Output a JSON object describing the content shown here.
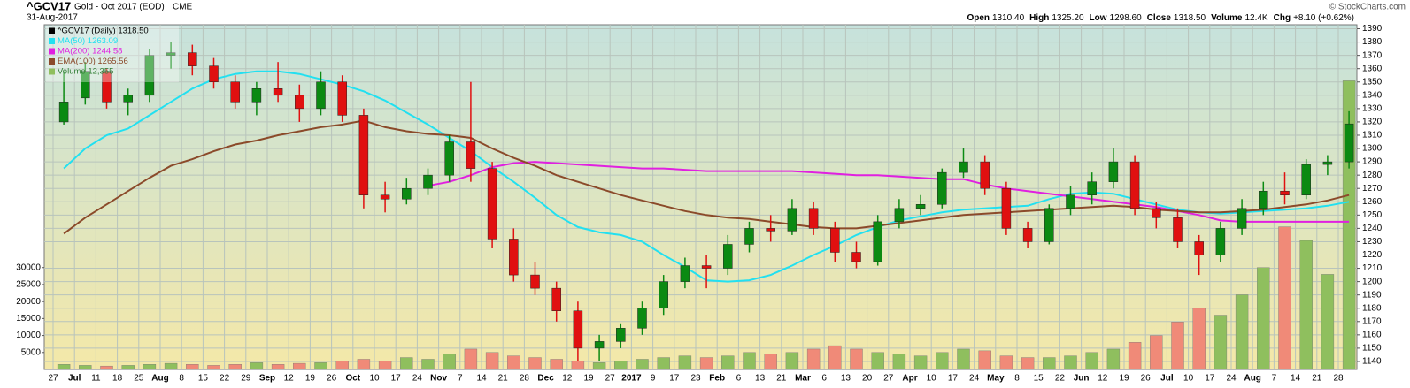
{
  "header": {
    "symbol": "^GCV17",
    "name": "Gold - Oct 2017 (EOD)",
    "exchange": "CME",
    "date": "31-Aug-2017",
    "copyright": "© StockCharts.com",
    "quote": [
      [
        "Open",
        "1310.40"
      ],
      [
        "High",
        "1325.20"
      ],
      [
        "Low",
        "1298.60"
      ],
      [
        "Close",
        "1318.50"
      ],
      [
        "Volume",
        "12.4K"
      ],
      [
        "Chg",
        "+8.10 (+0.62%)"
      ]
    ]
  },
  "chart_data": {
    "type": "candlestick",
    "categories": [
      "27",
      "Jul",
      "11",
      "18",
      "25",
      "Aug",
      "8",
      "15",
      "22",
      "29",
      "Sep",
      "12",
      "19",
      "26",
      "Oct",
      "10",
      "17",
      "24",
      "Nov",
      "7",
      "14",
      "21",
      "28",
      "Dec",
      "12",
      "19",
      "27",
      "2017",
      "9",
      "17",
      "23",
      "Feb",
      "6",
      "13",
      "21",
      "Mar",
      "6",
      "13",
      "20",
      "27",
      "Apr",
      "10",
      "17",
      "24",
      "May",
      "8",
      "15",
      "22",
      "Jun",
      "12",
      "19",
      "26",
      "Jul",
      "10",
      "17",
      "24",
      "Aug",
      "7",
      "14",
      "21",
      "28"
    ],
    "ylim": [
      1134,
      1393
    ],
    "yticks": [
      1140,
      1150,
      1160,
      1170,
      1180,
      1190,
      1200,
      1210,
      1220,
      1230,
      1240,
      1250,
      1260,
      1270,
      1280,
      1290,
      1300,
      1310,
      1320,
      1330,
      1340,
      1350,
      1360,
      1370,
      1380,
      1390
    ],
    "y2lim": [
      0,
      101500
    ],
    "y2ticks": [
      5000,
      10000,
      15000,
      20000,
      25000,
      30000
    ],
    "grid": true,
    "series": [
      {
        "name": "^GCV17 (Daily) 1318.50",
        "type": "candlestick",
        "color": "#000000",
        "up_color": "#0b8a12",
        "down_color": "#e01010",
        "values": [
          [
            1320,
            1358,
            1318,
            1335
          ],
          [
            1338,
            1365,
            1333,
            1358
          ],
          [
            1358,
            1360,
            1330,
            1335
          ],
          [
            1335,
            1345,
            1325,
            1340
          ],
          [
            1340,
            1375,
            1335,
            1370
          ],
          [
            1370,
            1380,
            1360,
            1372
          ],
          [
            1372,
            1378,
            1355,
            1362
          ],
          [
            1362,
            1368,
            1345,
            1350
          ],
          [
            1350,
            1355,
            1330,
            1335
          ],
          [
            1335,
            1350,
            1325,
            1345
          ],
          [
            1345,
            1365,
            1335,
            1340
          ],
          [
            1340,
            1348,
            1320,
            1330
          ],
          [
            1330,
            1358,
            1325,
            1350
          ],
          [
            1350,
            1355,
            1320,
            1325
          ],
          [
            1325,
            1330,
            1255,
            1265
          ],
          [
            1265,
            1275,
            1252,
            1262
          ],
          [
            1262,
            1278,
            1258,
            1270
          ],
          [
            1270,
            1285,
            1265,
            1280
          ],
          [
            1280,
            1310,
            1275,
            1305
          ],
          [
            1305,
            1350,
            1275,
            1285
          ],
          [
            1285,
            1290,
            1225,
            1232
          ],
          [
            1232,
            1240,
            1200,
            1205
          ],
          [
            1205,
            1215,
            1190,
            1195
          ],
          [
            1195,
            1200,
            1170,
            1178
          ],
          [
            1178,
            1185,
            1140,
            1150
          ],
          [
            1150,
            1160,
            1140,
            1155
          ],
          [
            1155,
            1168,
            1150,
            1165
          ],
          [
            1165,
            1185,
            1160,
            1180
          ],
          [
            1180,
            1205,
            1175,
            1200
          ],
          [
            1200,
            1218,
            1195,
            1212
          ],
          [
            1212,
            1220,
            1195,
            1210
          ],
          [
            1210,
            1235,
            1205,
            1228
          ],
          [
            1228,
            1245,
            1222,
            1240
          ],
          [
            1240,
            1250,
            1230,
            1238
          ],
          [
            1238,
            1262,
            1235,
            1255
          ],
          [
            1255,
            1260,
            1235,
            1240
          ],
          [
            1240,
            1245,
            1215,
            1222
          ],
          [
            1222,
            1230,
            1210,
            1215
          ],
          [
            1215,
            1250,
            1212,
            1245
          ],
          [
            1245,
            1262,
            1240,
            1255
          ],
          [
            1255,
            1265,
            1250,
            1258
          ],
          [
            1258,
            1285,
            1255,
            1282
          ],
          [
            1282,
            1300,
            1278,
            1290
          ],
          [
            1290,
            1295,
            1265,
            1270
          ],
          [
            1270,
            1275,
            1235,
            1240
          ],
          [
            1240,
            1245,
            1225,
            1230
          ],
          [
            1230,
            1258,
            1228,
            1255
          ],
          [
            1255,
            1272,
            1250,
            1265
          ],
          [
            1265,
            1282,
            1258,
            1275
          ],
          [
            1275,
            1300,
            1270,
            1290
          ],
          [
            1290,
            1295,
            1250,
            1255
          ],
          [
            1255,
            1260,
            1240,
            1248
          ],
          [
            1248,
            1255,
            1225,
            1230
          ],
          [
            1230,
            1235,
            1205,
            1220
          ],
          [
            1220,
            1245,
            1215,
            1240
          ],
          [
            1240,
            1262,
            1235,
            1255
          ],
          [
            1255,
            1275,
            1250,
            1268
          ],
          [
            1268,
            1282,
            1258,
            1265
          ],
          [
            1265,
            1292,
            1262,
            1288
          ],
          [
            1288,
            1295,
            1280,
            1290
          ],
          [
            1290,
            1328,
            1285,
            1318.5
          ]
        ]
      },
      {
        "name": "MA(50) 1263.09",
        "type": "line",
        "color": "#22e0f0",
        "values": [
          1285,
          1300,
          1310,
          1315,
          1325,
          1335,
          1345,
          1352,
          1356,
          1358,
          1358,
          1356,
          1352,
          1348,
          1343,
          1336,
          1327,
          1318,
          1308,
          1298,
          1286,
          1275,
          1263,
          1250,
          1241,
          1237,
          1235,
          1230,
          1220,
          1211,
          1201,
          1200,
          1201,
          1205,
          1212,
          1220,
          1227,
          1235,
          1241,
          1246,
          1249,
          1252,
          1254,
          1255,
          1256,
          1257,
          1262,
          1266,
          1267,
          1266,
          1262,
          1258,
          1254,
          1252,
          1251,
          1252,
          1253,
          1254,
          1255,
          1257,
          1260
        ]
      },
      {
        "name": "MA(200) 1244.58",
        "type": "line",
        "color": "#e020e0",
        "values": [
          null,
          null,
          null,
          null,
          null,
          null,
          null,
          null,
          null,
          null,
          null,
          null,
          null,
          null,
          null,
          null,
          null,
          1272,
          1275,
          1280,
          1286,
          1289,
          1290,
          1289,
          1288,
          1287,
          1286,
          1285,
          1285,
          1284,
          1283,
          1283,
          1283,
          1283,
          1283,
          1282,
          1281,
          1280,
          1280,
          1279,
          1278,
          1277,
          1277,
          1273,
          1270,
          1268,
          1266,
          1264,
          1262,
          1260,
          1258,
          1256,
          1253,
          1250,
          1246,
          1245,
          1245,
          1245,
          1245,
          1245,
          1245
        ]
      },
      {
        "name": "EMA(100) 1265.56",
        "type": "line",
        "color": "#8b4a2a",
        "values": [
          1236,
          1248,
          1258,
          1268,
          1278,
          1287,
          1292,
          1298,
          1303,
          1306,
          1310,
          1313,
          1316,
          1318,
          1321,
          1316,
          1313,
          1311,
          1310,
          1308,
          1300,
          1293,
          1287,
          1280,
          1275,
          1270,
          1265,
          1261,
          1257,
          1253,
          1250,
          1248,
          1247,
          1245,
          1243,
          1241,
          1240,
          1240,
          1242,
          1244,
          1246,
          1248,
          1250,
          1251,
          1252,
          1253,
          1254,
          1255,
          1256,
          1257,
          1256,
          1254,
          1253,
          1252,
          1252,
          1253,
          1254,
          1256,
          1258,
          1261,
          1265
        ]
      },
      {
        "name": "Volume 12,355",
        "type": "volume",
        "axis": "y2",
        "color": "#2e7d32",
        "up_color": "#8fbf5e",
        "down_color": "#f08a78",
        "values": [
          1500,
          1200,
          1000,
          1200,
          1500,
          1800,
          1500,
          1200,
          1500,
          2000,
          1500,
          1800,
          2000,
          2500,
          3000,
          2500,
          3500,
          3000,
          4500,
          6000,
          5000,
          4000,
          3500,
          3000,
          2500,
          2000,
          2500,
          3000,
          3500,
          4000,
          3500,
          4000,
          5000,
          4500,
          5000,
          6000,
          7000,
          6000,
          5000,
          4500,
          4000,
          5000,
          6000,
          5500,
          4000,
          3500,
          3500,
          4000,
          5000,
          6000,
          8000,
          10000,
          14000,
          18000,
          16000,
          22000,
          30000,
          42000,
          38000,
          28000,
          85000
        ]
      }
    ]
  }
}
